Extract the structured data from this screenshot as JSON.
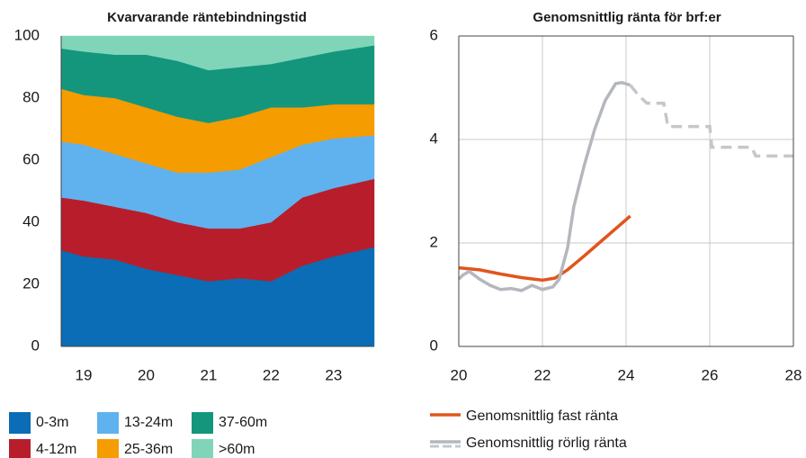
{
  "chart_data": [
    {
      "type": "stacked_area",
      "title": "Kvarvarande räntebindningstid",
      "x": [
        18.64,
        19.0,
        19.5,
        20.0,
        20.5,
        21.0,
        21.5,
        22.0,
        22.5,
        23.0,
        23.65
      ],
      "xlim": [
        18.64,
        23.65
      ],
      "xticks": [
        19,
        20,
        21,
        22,
        23
      ],
      "ylim": [
        0,
        100
      ],
      "yticks": [
        0,
        20,
        40,
        60,
        80,
        100
      ],
      "series": [
        {
          "name": "0-3m",
          "color": "#0a6db5",
          "values": [
            31,
            29,
            28,
            25,
            23,
            21,
            22,
            21,
            26,
            29,
            32
          ]
        },
        {
          "name": "4-12m",
          "color": "#b81d2c",
          "values": [
            17,
            18,
            17,
            18,
            17,
            17,
            16,
            19,
            22,
            22,
            22
          ]
        },
        {
          "name": "13-24m",
          "color": "#5fb2ee",
          "values": [
            18,
            18,
            17,
            16,
            16,
            18,
            19,
            21,
            17,
            16,
            14
          ]
        },
        {
          "name": "25-36m",
          "color": "#f59c00",
          "values": [
            17,
            16,
            18,
            18,
            18,
            16,
            17,
            16,
            12,
            11,
            10
          ]
        },
        {
          "name": "37-60m",
          "color": "#14967d",
          "values": [
            13,
            14,
            14,
            17,
            18,
            17,
            16,
            14,
            16,
            17,
            19
          ]
        },
        {
          "name": ">60m",
          "color": "#80d5b8",
          "values": [
            4,
            5,
            6,
            6,
            8,
            11,
            10,
            9,
            7,
            5,
            3
          ]
        }
      ]
    },
    {
      "type": "line",
      "title": "Genomsnittlig ränta för brf:er",
      "xlim": [
        20,
        28
      ],
      "xticks": [
        20,
        22,
        24,
        26,
        28
      ],
      "ylim": [
        0,
        6
      ],
      "yticks": [
        0,
        2,
        4,
        6
      ],
      "grid": true,
      "series": [
        {
          "name": "Genomsnittlig fast ränta",
          "color": "#e0561b",
          "dash": false,
          "x": [
            20,
            20.5,
            21,
            21.5,
            22,
            22.3,
            22.6,
            23,
            23.5,
            24,
            24.1
          ],
          "values": [
            1.52,
            1.48,
            1.4,
            1.33,
            1.28,
            1.32,
            1.48,
            1.75,
            2.1,
            2.45,
            2.52
          ]
        },
        {
          "name": "Genomsnittlig rörlig ränta",
          "color": "#b4b8bd",
          "dash": false,
          "x": [
            20,
            20.1,
            20.25,
            20.5,
            20.75,
            21,
            21.25,
            21.5,
            21.75,
            22,
            22.25,
            22.4,
            22.6,
            22.75,
            23,
            23.25,
            23.5,
            23.75,
            23.9,
            24.1
          ],
          "values": [
            1.3,
            1.38,
            1.45,
            1.3,
            1.18,
            1.1,
            1.12,
            1.08,
            1.18,
            1.1,
            1.15,
            1.3,
            1.9,
            2.7,
            3.5,
            4.2,
            4.75,
            5.08,
            5.1,
            5.05
          ]
        },
        {
          "color": "#c4c8cc",
          "dash": true,
          "x": [
            24.1,
            24.3,
            24.5,
            24.9,
            25.0,
            26.0,
            26.05,
            27.0,
            27.1,
            28.0
          ],
          "values": [
            5.05,
            4.85,
            4.7,
            4.7,
            4.25,
            4.25,
            3.85,
            3.85,
            3.68,
            3.68
          ]
        }
      ]
    }
  ]
}
